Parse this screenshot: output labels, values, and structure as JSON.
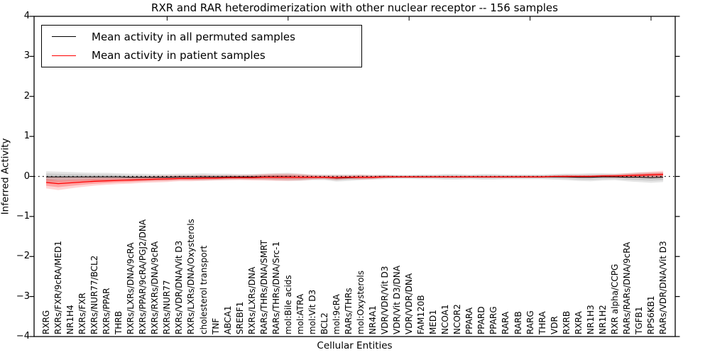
{
  "chart_data": {
    "type": "line",
    "title": "RXR and RAR heterodimerization with other nuclear receptor -- 156 samples",
    "xlabel": "Cellular Entities",
    "ylabel": "Inferred Activity",
    "ylim": [
      -4,
      4
    ],
    "grid": false,
    "legend_position": "upper-left",
    "zero_reference_line": 0,
    "yticks": [
      4,
      3,
      2,
      1,
      0,
      -1,
      -2,
      -3,
      -4
    ],
    "ytick_labels": [
      "4",
      "3",
      "2",
      "1",
      "0",
      "−1",
      "−2",
      "−3",
      "−4"
    ],
    "top_tick_indices": [
      10,
      20,
      30,
      40,
      50
    ],
    "categories": [
      "RXRG",
      "RXRs/FXR/9cRA/MED1",
      "NR1H4",
      "RXRs/FXR",
      "RXRs/NUR77/BCL2",
      "RXRs/PPAR",
      "THRB",
      "RXRs/LXRs/DNA/9cRA",
      "RXRs/PPAR/9cRA/PGJ2/DNA",
      "RXRs/RXRs/DNA/9cRA",
      "RXRs/NUR77",
      "RXRs/VDR/DNA/Vit D3",
      "RXRs/LXRs/DNA/Oxysterols",
      "cholesterol transport",
      "TNF",
      "ABCA1",
      "SREBF1",
      "RXRs/LXRs/DNA",
      "RARs/THRs/DNA/SMRT",
      "RARs/THRs/DNA/Src-1",
      "mol:Bile acids",
      "mol:ATRA",
      "mol:Vit D3",
      "BCL2",
      "mol:9cRA",
      "RARs/THRs",
      "mol:Oxysterols",
      "NR4A1",
      "VDR/VDR/Vit D3",
      "VDR/Vit D3/DNA",
      "VDR/VDR/DNA",
      "FAM120B",
      "MED1",
      "NCOA1",
      "NCOR2",
      "PPARA",
      "PPARD",
      "PPARG",
      "RARA",
      "RARB",
      "RARG",
      "THRA",
      "VDR",
      "RXRB",
      "RXRA",
      "NR1H3",
      "NR1H2",
      "RXR alpha/CCPG",
      "RARs/RARs/DNA/9cRA",
      "TGFB1",
      "RPS6KB1",
      "RARs/VDR/DNA/Vit D3"
    ],
    "series": [
      {
        "name": "Mean activity in all permuted samples",
        "color": "#000000",
        "band_color": "rgba(0,0,0,0.10)",
        "values": [
          -0.01,
          -0.01,
          -0.01,
          -0.01,
          -0.01,
          -0.01,
          -0.01,
          -0.02,
          -0.02,
          -0.02,
          -0.02,
          -0.01,
          -0.01,
          -0.01,
          -0.01,
          -0.01,
          -0.01,
          -0.01,
          -0.01,
          -0.01,
          -0.01,
          -0.02,
          -0.02,
          -0.02,
          -0.04,
          -0.03,
          -0.02,
          -0.02,
          -0.01,
          -0.01,
          -0.01,
          -0.01,
          -0.01,
          -0.01,
          -0.01,
          -0.01,
          -0.01,
          -0.01,
          -0.01,
          -0.01,
          -0.01,
          -0.01,
          -0.01,
          -0.01,
          -0.02,
          -0.02,
          -0.01,
          -0.01,
          -0.02,
          -0.02,
          -0.03,
          -0.02
        ],
        "band_halfwidth": [
          0.14,
          0.13,
          0.12,
          0.11,
          0.1,
          0.1,
          0.09,
          0.09,
          0.09,
          0.08,
          0.08,
          0.08,
          0.08,
          0.09,
          0.08,
          0.08,
          0.07,
          0.07,
          0.08,
          0.09,
          0.1,
          0.09,
          0.07,
          0.07,
          0.09,
          0.08,
          0.07,
          0.06,
          0.06,
          0.05,
          0.05,
          0.06,
          0.06,
          0.07,
          0.07,
          0.06,
          0.07,
          0.07,
          0.06,
          0.06,
          0.06,
          0.06,
          0.07,
          0.08,
          0.09,
          0.1,
          0.09,
          0.08,
          0.1,
          0.12,
          0.13,
          0.12
        ]
      },
      {
        "name": "Mean activity in patient samples",
        "color": "#ff0000",
        "band_color": "rgba(255,0,0,0.16)",
        "values": [
          -0.15,
          -0.18,
          -0.16,
          -0.14,
          -0.12,
          -0.11,
          -0.1,
          -0.09,
          -0.08,
          -0.07,
          -0.06,
          -0.05,
          -0.05,
          -0.04,
          -0.04,
          -0.03,
          -0.03,
          -0.03,
          -0.02,
          -0.02,
          -0.02,
          -0.02,
          -0.02,
          -0.02,
          -0.03,
          -0.02,
          -0.02,
          -0.02,
          -0.01,
          -0.01,
          -0.01,
          -0.01,
          -0.01,
          -0.01,
          -0.01,
          -0.01,
          -0.01,
          -0.01,
          -0.01,
          -0.01,
          -0.01,
          -0.01,
          0.0,
          0.0,
          0.0,
          0.0,
          0.01,
          0.01,
          0.02,
          0.03,
          0.04,
          0.05
        ],
        "band_halfwidth": [
          0.15,
          0.16,
          0.14,
          0.12,
          0.11,
          0.1,
          0.09,
          0.09,
          0.08,
          0.08,
          0.08,
          0.07,
          0.07,
          0.07,
          0.06,
          0.06,
          0.06,
          0.07,
          0.08,
          0.09,
          0.09,
          0.08,
          0.06,
          0.05,
          0.06,
          0.05,
          0.06,
          0.05,
          0.04,
          0.03,
          0.03,
          0.03,
          0.03,
          0.03,
          0.03,
          0.03,
          0.03,
          0.03,
          0.03,
          0.03,
          0.03,
          0.03,
          0.03,
          0.04,
          0.04,
          0.04,
          0.04,
          0.05,
          0.06,
          0.07,
          0.08,
          0.09
        ]
      }
    ]
  }
}
